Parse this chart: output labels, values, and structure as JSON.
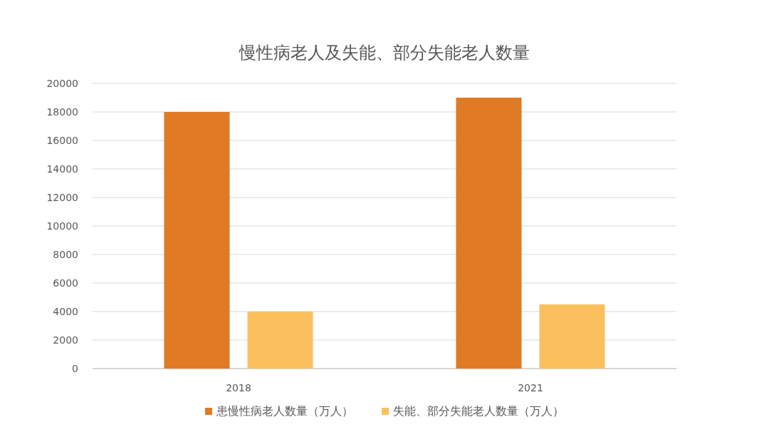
{
  "chart_data": {
    "type": "bar",
    "title": "慢性病老人及失能、部分失能老人数量",
    "categories": [
      "2018",
      "2021"
    ],
    "series": [
      {
        "name": "患慢性病老人数量（万人）",
        "color": "#e07a25",
        "values": [
          18000,
          19000
        ]
      },
      {
        "name": "失能、部分失能老人数量（万人）",
        "color": "#fbbf5e",
        "values": [
          4000,
          4500
        ]
      }
    ],
    "ylim": [
      0,
      20000
    ],
    "yticks": [
      0,
      2000,
      4000,
      6000,
      8000,
      10000,
      12000,
      14000,
      16000,
      18000,
      20000
    ],
    "grid": "y",
    "legend": "bottom"
  }
}
